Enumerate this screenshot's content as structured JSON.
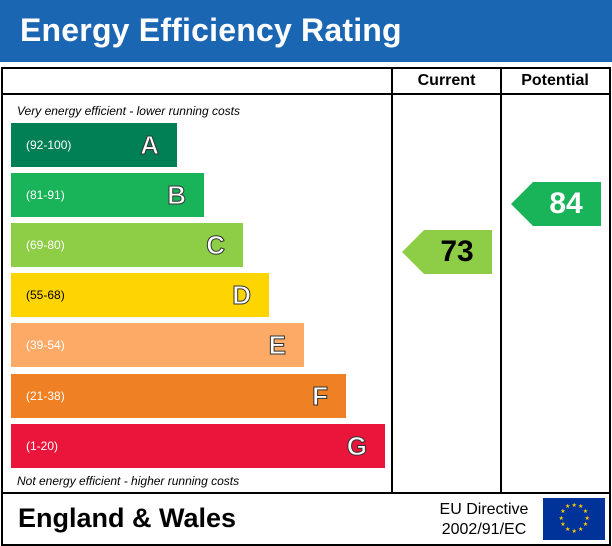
{
  "header": {
    "title": "Energy Efficiency Rating"
  },
  "columns": {
    "current_label": "Current",
    "potential_label": "Potential"
  },
  "notes": {
    "top": "Very energy efficient - lower running costs",
    "bottom": "Not energy efficient - higher running costs"
  },
  "bands": [
    {
      "range": "(92-100)",
      "letter": "A",
      "color": "#008054"
    },
    {
      "range": "(81-91)",
      "letter": "B",
      "color": "#19b459"
    },
    {
      "range": "(69-80)",
      "letter": "C",
      "color": "#8dce46"
    },
    {
      "range": "(55-68)",
      "letter": "D",
      "color": "#ffd500"
    },
    {
      "range": "(39-54)",
      "letter": "E",
      "color": "#fcaa65"
    },
    {
      "range": "(21-38)",
      "letter": "F",
      "color": "#ef8023"
    },
    {
      "range": "(1-20)",
      "letter": "G",
      "color": "#e9153b"
    }
  ],
  "ratings": {
    "current": {
      "value": "73",
      "band": "C",
      "color": "#8dce46"
    },
    "potential": {
      "value": "84",
      "band": "B",
      "color": "#19b459"
    }
  },
  "footer": {
    "region": "England & Wales",
    "directive_line1": "EU Directive",
    "directive_line2": "2002/91/EC",
    "flag_icon": "eu-flag-icon"
  }
}
